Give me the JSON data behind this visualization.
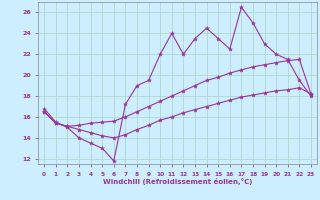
{
  "xlabel": "Windchill (Refroidissement éolien,°C)",
  "background_color": "#cceeff",
  "grid_color": "#b0d8cc",
  "line_color": "#993399",
  "xlim": [
    -0.5,
    23.5
  ],
  "ylim": [
    11.5,
    27
  ],
  "xticks": [
    0,
    1,
    2,
    3,
    4,
    5,
    6,
    7,
    8,
    9,
    10,
    11,
    12,
    13,
    14,
    15,
    16,
    17,
    18,
    19,
    20,
    21,
    22,
    23
  ],
  "yticks": [
    12,
    14,
    16,
    18,
    20,
    22,
    24,
    26
  ],
  "line1_x": [
    0,
    1,
    2,
    3,
    4,
    5,
    6,
    7,
    8,
    9,
    10,
    11,
    12,
    13,
    14,
    15,
    16,
    17,
    18,
    19,
    20,
    21,
    22,
    23
  ],
  "line1_y": [
    16.8,
    15.5,
    15.0,
    14.0,
    13.5,
    13.0,
    11.8,
    17.2,
    19.0,
    19.5,
    22.0,
    24.0,
    22.0,
    23.5,
    24.5,
    23.5,
    22.5,
    26.5,
    25.0,
    23.0,
    22.0,
    21.5,
    19.5,
    18.0
  ],
  "line2_x": [
    0,
    1,
    2,
    3,
    4,
    5,
    6,
    7,
    8,
    9,
    10,
    11,
    12,
    13,
    14,
    15,
    16,
    17,
    18,
    19,
    20,
    21,
    22,
    23
  ],
  "line2_y": [
    16.5,
    15.4,
    15.1,
    15.2,
    15.4,
    15.5,
    15.6,
    16.0,
    16.5,
    17.0,
    17.5,
    18.0,
    18.5,
    19.0,
    19.5,
    19.8,
    20.2,
    20.5,
    20.8,
    21.0,
    21.2,
    21.4,
    21.5,
    18.2
  ],
  "line3_x": [
    0,
    1,
    2,
    3,
    4,
    5,
    6,
    7,
    8,
    9,
    10,
    11,
    12,
    13,
    14,
    15,
    16,
    17,
    18,
    19,
    20,
    21,
    22,
    23
  ],
  "line3_y": [
    16.5,
    15.4,
    15.1,
    14.8,
    14.5,
    14.2,
    14.0,
    14.3,
    14.8,
    15.2,
    15.7,
    16.0,
    16.4,
    16.7,
    17.0,
    17.3,
    17.6,
    17.9,
    18.1,
    18.3,
    18.5,
    18.6,
    18.8,
    18.2
  ]
}
